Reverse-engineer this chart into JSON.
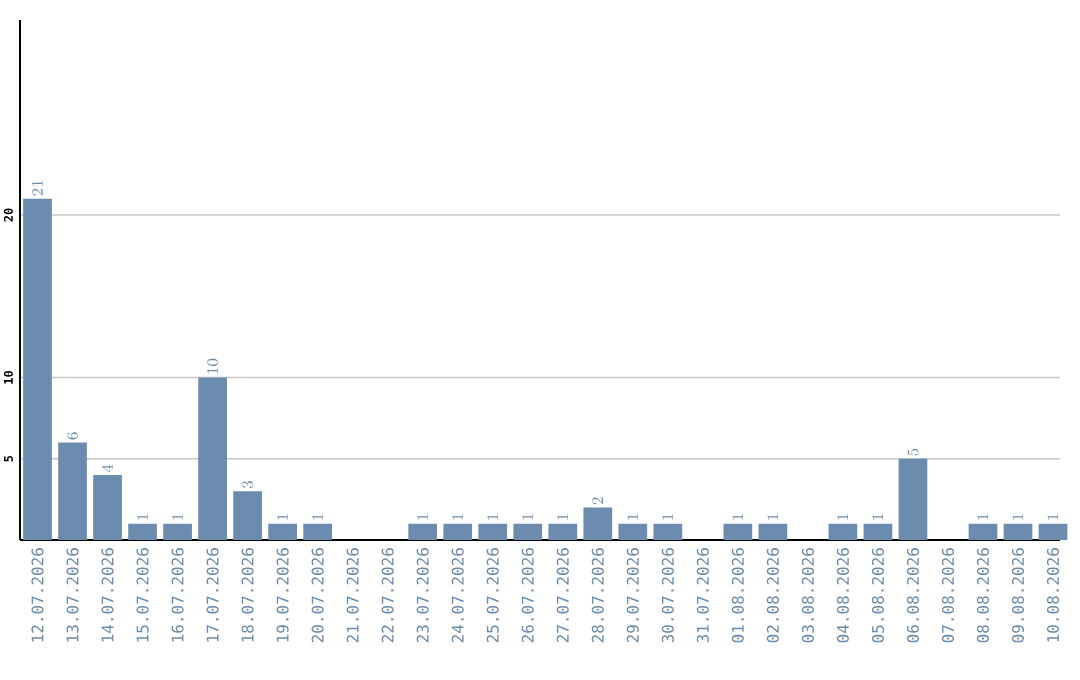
{
  "chart_data": {
    "type": "bar",
    "categories": [
      "12.07.2026",
      "13.07.2026",
      "14.07.2026",
      "15.07.2026",
      "16.07.2026",
      "17.07.2026",
      "18.07.2026",
      "19.07.2026",
      "20.07.2026",
      "21.07.2026",
      "22.07.2026",
      "23.07.2026",
      "24.07.2026",
      "25.07.2026",
      "26.07.2026",
      "27.07.2026",
      "28.07.2026",
      "29.07.2026",
      "30.07.2026",
      "31.07.2026",
      "01.08.2026",
      "02.08.2026",
      "03.08.2026",
      "04.08.2026",
      "05.08.2026",
      "06.08.2026",
      "07.08.2026",
      "08.08.2026",
      "09.08.2026",
      "10.08.2026"
    ],
    "values": [
      21,
      6,
      4,
      1,
      1,
      10,
      3,
      1,
      1,
      null,
      null,
      1,
      1,
      1,
      1,
      1,
      2,
      1,
      1,
      null,
      1,
      1,
      null,
      1,
      1,
      5,
      null,
      1,
      1,
      1
    ],
    "color": "#6b8cae",
    "ylim": [
      0,
      32
    ],
    "yticks": [
      5,
      10,
      20
    ],
    "grid": "y",
    "data_labels": true
  }
}
